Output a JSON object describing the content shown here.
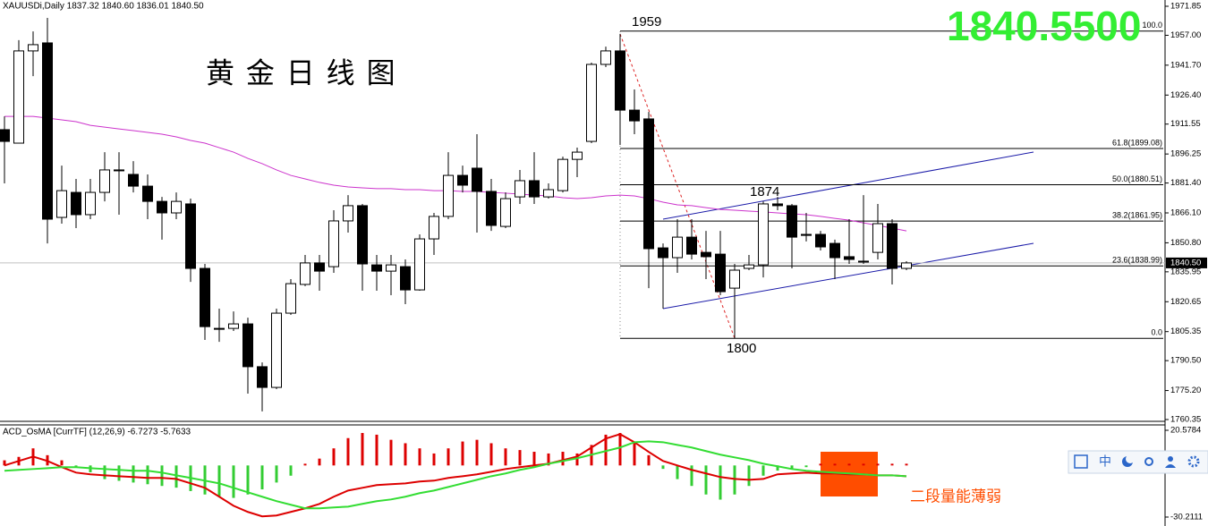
{
  "chart_data": [
    {
      "type": "candlestick",
      "header": "XAUUSDi,Daily  1837.32 1840.60 1836.01 1840.50",
      "title": "黄 金 日 线 图",
      "big_price": "1840.5500",
      "annotations": [
        "1959",
        "1874",
        "1800"
      ],
      "open": [
        1908.7,
        1901.8,
        1949.0,
        1953.1,
        1863.8,
        1876.6,
        1865.2,
        1876.6,
        1888.1,
        1885.8,
        1879.8,
        1872.0,
        1866.1,
        1870.7,
        1837.7,
        1807.0,
        1807.0,
        1809.3,
        1787.4,
        1776.8,
        1814.8,
        1829.5,
        1840.5,
        1838.6,
        1862.0,
        1869.8,
        1839.5,
        1836.3,
        1838.6,
        1826.7,
        1852.8,
        1864.3,
        1885.3,
        1889.0,
        1877.1,
        1859.2,
        1874.3,
        1882.6,
        1874.3,
        1877.5,
        1893.5,
        1902.7,
        1942.1,
        1949.0,
        1918.7,
        1914.2,
        1848.2,
        1843.2,
        1853.7,
        1845.9,
        1845.0,
        1827.6,
        1837.7,
        1839.5,
        1870.7,
        1869.8,
        1855.1,
        1855.1,
        1850.5,
        1843.7,
        1841.4,
        1845.9,
        1860.6,
        1837.7
      ],
      "high": [
        1915.5,
        1954.5,
        1959.0,
        1965.9,
        1890.3,
        1883.5,
        1883.5,
        1897.2,
        1897.2,
        1892.6,
        1885.8,
        1874.3,
        1876.6,
        1873.4,
        1840.0,
        1817.1,
        1815.7,
        1812.5,
        1789.6,
        1817.1,
        1832.2,
        1844.6,
        1844.6,
        1867.5,
        1875.2,
        1870.7,
        1844.6,
        1844.6,
        1842.3,
        1855.1,
        1866.1,
        1897.2,
        1890.3,
        1906.4,
        1883.5,
        1876.6,
        1888.1,
        1897.2,
        1881.2,
        1894.9,
        1899.5,
        1943.0,
        1951.2,
        1957.7,
        1929.3,
        1917.8,
        1850.5,
        1862.9,
        1862.9,
        1856.9,
        1856.9,
        1840.0,
        1844.6,
        1872.0,
        1874.3,
        1870.7,
        1866.1,
        1856.9,
        1852.4,
        1862.9,
        1875.2,
        1870.7,
        1862.9,
        1841.4
      ],
      "low": [
        1881.2,
        1901.8,
        1936.1,
        1850.5,
        1860.6,
        1858.3,
        1862.9,
        1872.0,
        1865.2,
        1876.6,
        1862.9,
        1852.4,
        1862.9,
        1830.8,
        1801.1,
        1800.1,
        1805.7,
        1773.6,
        1764.5,
        1775.9,
        1813.9,
        1828.6,
        1826.3,
        1835.4,
        1856.0,
        1826.3,
        1826.3,
        1824.0,
        1819.4,
        1826.3,
        1844.6,
        1862.9,
        1876.6,
        1856.0,
        1856.9,
        1858.3,
        1870.7,
        1870.7,
        1873.4,
        1876.6,
        1884.4,
        1901.8,
        1940.7,
        1900.9,
        1906.4,
        1827.6,
        1817.1,
        1835.4,
        1842.3,
        1832.2,
        1824.0,
        1802.0,
        1836.8,
        1833.1,
        1867.5,
        1837.7,
        1851.5,
        1846.9,
        1832.2,
        1840.0,
        1840.0,
        1842.3,
        1829.5,
        1836.8
      ],
      "close": [
        1902.7,
        1949.0,
        1952.2,
        1862.9,
        1877.5,
        1865.2,
        1876.6,
        1888.1,
        1888.1,
        1879.8,
        1872.0,
        1866.1,
        1872.0,
        1837.7,
        1807.9,
        1807.0,
        1809.3,
        1787.4,
        1776.8,
        1814.8,
        1829.9,
        1840.5,
        1836.3,
        1862.0,
        1869.8,
        1840.0,
        1836.3,
        1839.5,
        1826.7,
        1852.8,
        1864.3,
        1885.3,
        1880.3,
        1877.1,
        1859.7,
        1873.4,
        1882.6,
        1874.3,
        1878.0,
        1893.5,
        1897.2,
        1942.1,
        1949.0,
        1918.7,
        1913.2,
        1847.8,
        1843.2,
        1853.7,
        1845.0,
        1843.7,
        1825.8,
        1836.8,
        1839.5,
        1870.7,
        1869.8,
        1853.7,
        1854.6,
        1848.7,
        1843.2,
        1842.3,
        1841.4,
        1860.6,
        1837.7,
        1840.5
      ],
      "up_color": "#ffffff",
      "down_color": "#000000",
      "ma": {
        "color": "#cc33cc",
        "values": [
          1915.5,
          1915.5,
          1915.5,
          1914.6,
          1913.7,
          1912.8,
          1910.9,
          1910.0,
          1909.1,
          1908.2,
          1907.3,
          1906.4,
          1905.0,
          1903.2,
          1901.8,
          1899.5,
          1897.2,
          1894.0,
          1891.3,
          1888.1,
          1885.3,
          1883.5,
          1881.7,
          1880.3,
          1879.4,
          1878.9,
          1878.5,
          1878.5,
          1878.0,
          1878.0,
          1877.5,
          1877.5,
          1877.1,
          1877.1,
          1876.6,
          1876.2,
          1875.7,
          1875.2,
          1874.8,
          1873.9,
          1873.4,
          1873.9,
          1874.8,
          1875.2,
          1874.8,
          1873.4,
          1871.6,
          1870.2,
          1869.8,
          1868.8,
          1867.9,
          1867.5,
          1867.0,
          1866.6,
          1866.1,
          1865.6,
          1865.2,
          1864.3,
          1863.3,
          1862.4,
          1861.0,
          1859.7,
          1858.3,
          1856.9
        ]
      },
      "fib": [
        {
          "label": "100.0",
          "price": 1959.17
        },
        {
          "label": "61.8(1899.08)",
          "price": 1899.08
        },
        {
          "label": "50.0(1880.51)",
          "price": 1880.51
        },
        {
          "label": "38.2(1861.95)",
          "price": 1861.95
        },
        {
          "label": "23.6(1838.99)",
          "price": 1838.99
        },
        {
          "label": "0.0",
          "price": 1801.87
        }
      ],
      "current_price": {
        "value": 1840.5,
        "label": "1840.50"
      },
      "ylim": [
        1760.35,
        1971.85
      ],
      "yticks": [
        1971.85,
        {
          "value": 1957,
          "label": "1957.00"
        },
        {
          "value": 1941.7,
          "label": "1941.70"
        },
        {
          "value": 1926.4,
          "label": "1926.40"
        },
        1911.55,
        1896.25,
        {
          "value": 1881.4,
          "label": "1881.40"
        },
        {
          "value": 1866.1,
          "label": "1866.10"
        },
        {
          "value": 1850.8,
          "label": "1850.80"
        },
        1835.95,
        1820.65,
        1805.35,
        {
          "value": 1790.5,
          "label": "1790.50"
        },
        {
          "value": 1775.2,
          "label": "1775.20"
        },
        1760.35
      ]
    },
    {
      "type": "macd",
      "header": "ACD_OsMA [CurrTF] (12,26,9) -6.7273 -5.7633",
      "annotation": "二段量能薄弱",
      "histogram": {
        "positive_color": "#dd0000",
        "negative_color": "#33cc33",
        "values": [
          3,
          5,
          10,
          6,
          3,
          -1,
          -4,
          -8,
          -9,
          -10,
          -11,
          -12,
          -13,
          -15,
          -17,
          -18,
          -19,
          -17,
          -14,
          -10,
          -6,
          1,
          4,
          10,
          16,
          19,
          18,
          15,
          13,
          10,
          7,
          10,
          14,
          15,
          13,
          10,
          9,
          8,
          7,
          8,
          7,
          12,
          18,
          19,
          14,
          6,
          -2,
          -8,
          -12,
          -17,
          -20,
          -17,
          -12,
          -6,
          -3,
          -2,
          -1,
          1,
          1,
          1,
          1,
          1,
          1,
          1
        ]
      },
      "series": [
        {
          "color": "#dd0000",
          "values": [
            0,
            2.6,
            5.2,
            2.6,
            -1.0,
            -4.2,
            -5.2,
            -5.8,
            -6.3,
            -6.8,
            -7.3,
            -7.3,
            -7.9,
            -10.5,
            -13.1,
            -18.3,
            -23.6,
            -27.2,
            -29.8,
            -29.3,
            -27.2,
            -25.1,
            -22.5,
            -18.3,
            -14.7,
            -13.1,
            -11.5,
            -11.0,
            -10.5,
            -9.4,
            -8.9,
            -7.3,
            -6.3,
            -5.2,
            -3.7,
            -2.1,
            -1.0,
            0,
            1.0,
            3.1,
            5.2,
            10.5,
            15.7,
            18.3,
            13.6,
            7.9,
            2.6,
            0,
            -2.6,
            -4.7,
            -6.8,
            -7.9,
            -8.4,
            -7.9,
            -5.2,
            -4.7,
            -4.2,
            -4.7,
            -4.7,
            -5.2,
            -5.2,
            -5.8,
            -5.8,
            -6.3
          ]
        },
        {
          "color": "#33dd33",
          "values": [
            -3.1,
            -2.6,
            -2.1,
            -1.6,
            -1.0,
            -1.0,
            -1.6,
            -2.1,
            -2.6,
            -3.1,
            -3.1,
            -4.2,
            -5.8,
            -7.3,
            -8.9,
            -10.5,
            -13.1,
            -15.7,
            -18.3,
            -20.9,
            -23.0,
            -25.1,
            -25.1,
            -24.6,
            -24.1,
            -22.5,
            -20.9,
            -19.9,
            -18.3,
            -16.2,
            -14.7,
            -12.6,
            -10.5,
            -8.4,
            -6.3,
            -4.7,
            -2.6,
            -1.0,
            1.0,
            2.6,
            4.2,
            6.3,
            8.4,
            10.5,
            13.6,
            14.1,
            13.6,
            12.0,
            10.5,
            8.4,
            6.3,
            4.7,
            3.1,
            1.0,
            -0.5,
            -2.1,
            -3.1,
            -3.7,
            -4.2,
            -4.7,
            -5.2,
            -5.8,
            -5.8,
            -6.3
          ]
        }
      ],
      "ylim": [
        -30.2111,
        20.5784
      ],
      "yticks": [
        20.5784,
        -30.2111
      ]
    }
  ],
  "toolbar": {
    "language": "中"
  }
}
